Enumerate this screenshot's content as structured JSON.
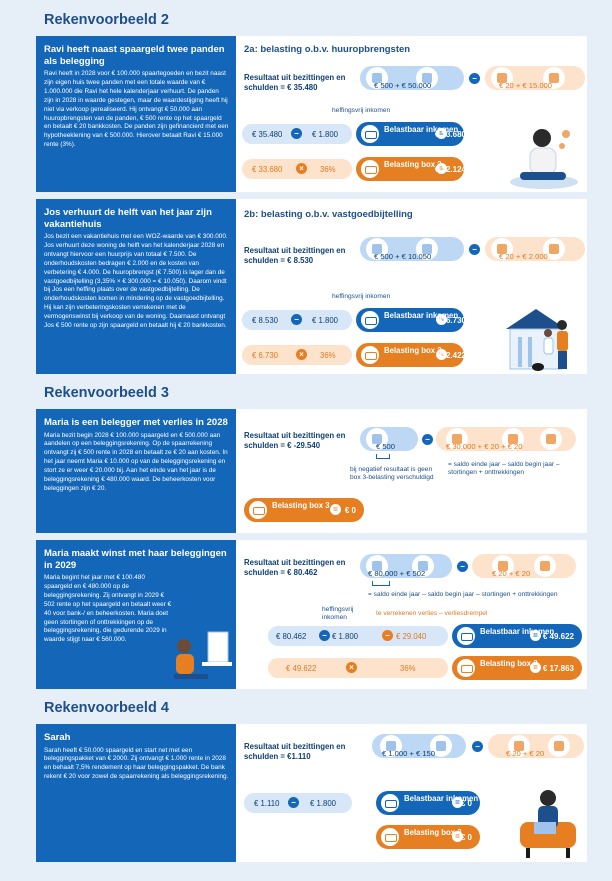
{
  "example2": {
    "heading": "Rekenvoorbeeld 2",
    "ravi": {
      "title": "Ravi heeft naast spaargeld twee panden als belegging",
      "body": "Ravi heeft in 2028 voor € 100.000 spaartegoeden en bezit naast zijn eigen huis twee panden met een totale waarde van € 1.000.000 die Ravi het hele kalenderjaar verhuurt. De panden zijn in 2028 in waarde gestegen, maar de waardestijging heeft hij niet via verkoop gerealiseerd. Hij ontvangt € 50.000 aan huuropbrengsten van de panden, € 500 rente op het spaargeld en betaalt € 20 bankkosten. De panden zijn gefinancierd met een hypotheeklening van € 500.000. Hierover betaalt Ravi € 15.000 rente (3%).",
      "subtitle": "2a: belasting o.b.v. huuropbrengsten",
      "result_label": "Resultaat uit bezittingen en schulden = € 35.480",
      "income": "€ 500  +  € 50.000",
      "costs": "€ 20  +  € 15.000",
      "exemption_note": "heffingsvrij inkomen",
      "row1_a": "€ 35.480",
      "row1_b": "€ 1.800",
      "taxable_label": "Belastbaar inkomen",
      "taxable_amount": "€ 33.680",
      "row2_a": "€ 33.680",
      "row2_b": "36%",
      "box3_label": "Belasting box 3",
      "box3_amount": "€ 12.124"
    },
    "jos": {
      "title": "Jos verhuurt de helft van het jaar zijn vakantiehuis",
      "body": "Jos bezit een vakantiehuis met een WOZ-waarde van € 300.000. Jos verhuurt deze woning de helft van het kalenderjaar 2028 en ontvangt hiervoor een huurprijs van totaal € 7.500. De onderhoudskosten bedragen € 2.000 en de kosten van verbetering € 4.000. De huuropbrengst (€ 7.500) is lager dan de vastgoedbijtelling (3,35% × € 300.000 = € 10.050). Daarom vindt bij Jos een heffing plaats over de vastgoedbijtelling. De onderhoudskosten komen in mindering op de vastgoedbijtelling. Hij kan zijn verbeteringskosten verrekenen met de vermogenswinst bij verkoop van de woning. Daarnaast ontvangt Jos € 500 rente op zijn spaargeld en betaalt hij € 20 bankkosten.",
      "subtitle": "2b: belasting o.b.v. vastgoedbijtelling",
      "result_label": "Resultaat uit bezittingen en schulden = € 8.530",
      "income": "€ 500  +  € 10.050",
      "costs": "€ 20  +  € 2.000",
      "exemption_note": "heffingsvrij inkomen",
      "row1_a": "€ 8.530",
      "row1_b": "€ 1.800",
      "taxable_label": "Belastbaar inkomen",
      "taxable_amount": "€ 6.730",
      "row2_a": "€ 6.730",
      "row2_b": "36%",
      "box3_label": "Belasting box 3",
      "box3_amount": "€ 2.422"
    }
  },
  "example3": {
    "heading": "Rekenvoorbeeld 3",
    "loss": {
      "title": "Maria is een belegger met verlies in 2028",
      "body": "Maria bezit begin 2028 € 100.000 spaargeld en € 500.000 aan aandelen op een beleggingsrekening. Op de spaarrekening ontvangt zij € 500 rente in 2028 en betaalt ze € 20 aan kosten. In het jaar neemt Maria € 10.000 op van de beleggingsrekening en stort ze er weer € 20.000 bij. Aan het einde van het jaar is de beleggingsrekening € 480.000 waard. De beheerkosten voor beleggingen zijn € 20.",
      "result_label": "Resultaat uit bezittingen en schulden = € -29.540",
      "income": "€ 500",
      "costs": "€ 30.000  +  € 20  +  € 20",
      "neg_note": "bij negatief resultaat is geen box 3-belasting verschuldigd",
      "formula_note": "= saldo einde jaar – saldo begin jaar – stortingen + onttrekkingen",
      "box3_label": "Belasting box 3",
      "box3_amount": "€ 0"
    },
    "profit": {
      "title": "Maria maakt winst met haar beleggingen in 2029",
      "body": "Maria begint het jaar met € 100.480 spaargeld en € 480.000 op de beleggingsrekening. Zij ontvangt in 2029 € 502 rente op het spaargeld en betaalt weer € 40 voor bank-/ en beheerkosten. Maria doet geen stortingen of onttrekkingen op de beleggingsrekening, die gedurende 2029 in waarde stijgt naar € 560.000.",
      "result_label": "Resultaat uit bezittingen en schulden = € 80.462",
      "income": "€ 80.000  +  € 502",
      "costs": "€ 20  +  € 20",
      "formula_note": "= saldo einde jaar – saldo begin jaar – stortingen + onttrekkingen",
      "exemption_note": "heffingsvrij inkomen",
      "loss_note": "te verrekenen verlies – verliesdrempel",
      "row1_a": "€ 80.462",
      "row1_b": "€ 1.800",
      "row1_c": "€ 29.040",
      "taxable_label": "Belastbaar inkomen",
      "taxable_amount": "€ 49.622",
      "row2_a": "€ 49.622",
      "row2_b": "36%",
      "box3_label": "Belasting box 3",
      "box3_amount": "€ 17.863"
    }
  },
  "example4": {
    "heading": "Rekenvoorbeeld 4",
    "sarah": {
      "title": "Sarah",
      "body": "Sarah heeft € 50.000 spaargeld en start net met een beleggingspakket van € 2000. Zij ontvangt € 1.000 rente in 2028 en behaalt 7,5% rendement op haar beleggingspakket. De bank rekent € 20 voor zowel de spaarrekening als beleggingsrekening.",
      "result_label": "Resultaat uit bezittingen en schulden = €1.110",
      "income": "€ 1.000  +  € 150",
      "costs": "€ 20  +  € 20",
      "row1_a": "€ 1.110",
      "row1_b": "€ 1.800",
      "taxable_label": "Belastbaar inkomen",
      "taxable_amount": "€ 0",
      "box3_label": "Belasting box 3",
      "box3_amount": "€ 0"
    }
  },
  "colors": {
    "blue": "#1467b8",
    "orange": "#e67e22",
    "lightblue": "#bcd8f4",
    "lightorange": "#fde2cc"
  }
}
